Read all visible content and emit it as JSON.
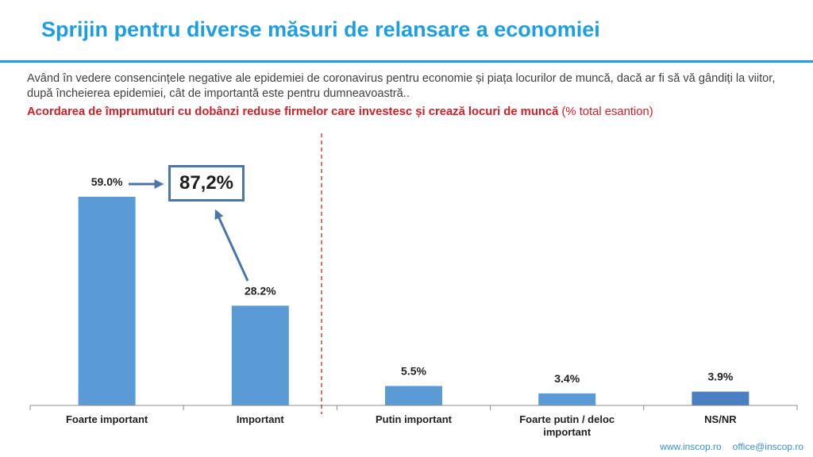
{
  "header": {
    "title": "Sprijin pentru diverse măsuri de relansare a economiei",
    "question": "Având în vedere consencințele negative ale epidemiei de coronavirus pentru economie și piața locurilor de muncă, dacă ar fi să vă gândiți la viitor, după încheierea epidemiei, cât de importantă este pentru dumneavoastră..",
    "subtitle_strong": "Acordarea de împrumuturi cu dobânzi reduse firmelor care investesc și crează locuri de muncă",
    "subtitle_note": " (% total esantion)"
  },
  "chart_data": {
    "type": "bar",
    "categories": [
      "Foarte important",
      "Important",
      "Putin important",
      "Foarte putin / deloc important",
      "NS/NR"
    ],
    "values": [
      59.0,
      28.2,
      5.5,
      3.4,
      3.9
    ],
    "value_labels": [
      "59.0%",
      "28.2%",
      "5.5%",
      "3.4%",
      "3.9%"
    ],
    "title": "",
    "xlabel": "",
    "ylabel": "",
    "ylim": [
      0,
      59.0
    ],
    "grid": false,
    "legend": "none",
    "bar_colors": [
      "#5b9bd5",
      "#5b9bd5",
      "#5b9bd5",
      "#5b9bd5",
      "#4a7fc1"
    ],
    "divider": "dashed red line between Important and Putin important",
    "annotation": {
      "text": "87,2%",
      "description_sum_of": [
        "Foarte important",
        "Important"
      ]
    }
  },
  "colors": {
    "accent": "#1d9ee0",
    "highlight": "#d21f26",
    "bar": "#5b9bd5",
    "arrow": "#4a76a8"
  },
  "footer": {
    "website": "www.inscop.ro",
    "email": "office@inscop.ro"
  }
}
